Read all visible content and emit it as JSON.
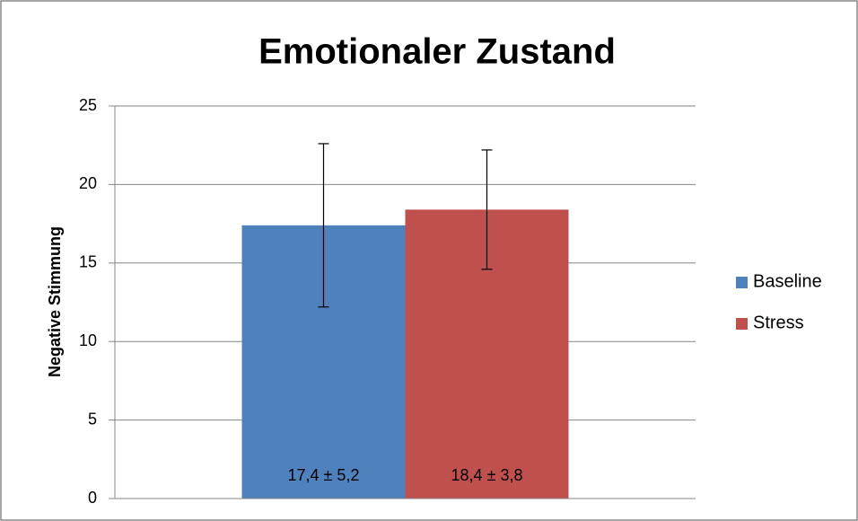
{
  "chart_data": {
    "type": "bar",
    "title": "Emotionaler Zustand",
    "y_label": "Negative Stimmung",
    "categories": [
      null
    ],
    "series": [
      {
        "name": "Baseline",
        "color": "#4f81bd",
        "values": [
          17.4
        ],
        "errors": [
          5.2
        ],
        "value_labels": [
          "17,4 ± 5,2"
        ]
      },
      {
        "name": "Stress",
        "color": "#c0504d",
        "values": [
          18.4
        ],
        "errors": [
          3.8
        ],
        "value_labels": [
          "18,4 ± 3,8"
        ]
      }
    ],
    "ylim": [
      0,
      25
    ],
    "yticks": [
      0,
      5,
      10,
      15,
      20,
      25
    ],
    "grid": true,
    "legend": "right"
  }
}
